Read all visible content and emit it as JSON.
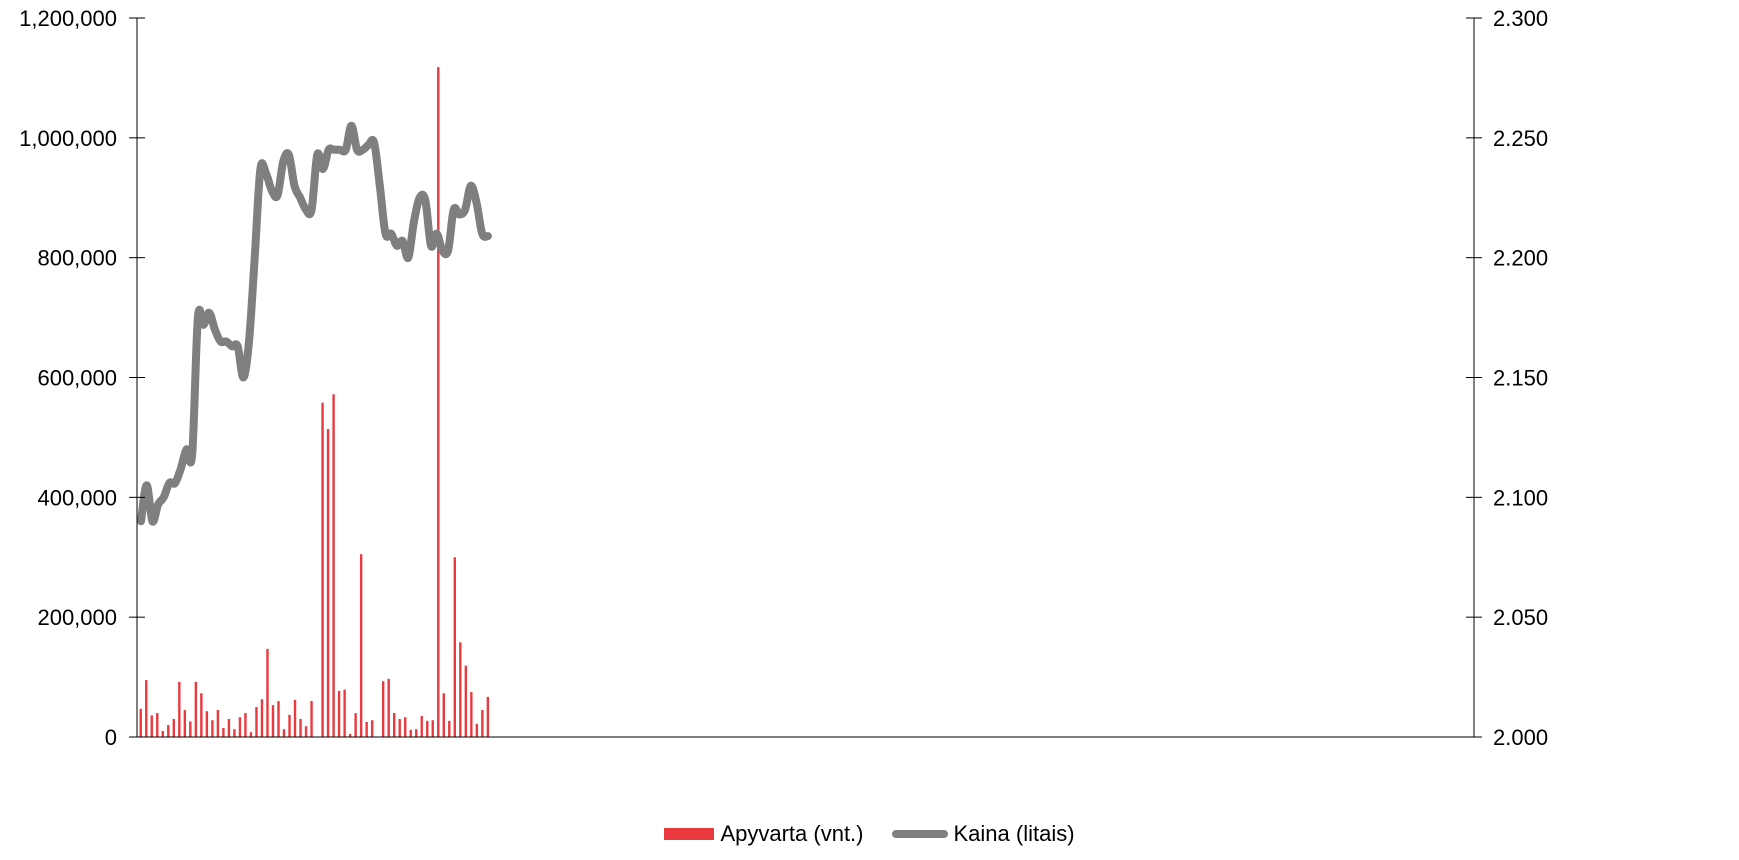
{
  "chart_data": {
    "type": "bar+line",
    "colors": {
      "bar": "#ea3a3f",
      "line": "#7f7f7f",
      "axis": "#000000"
    },
    "y_left": {
      "ylim": [
        0,
        1200000
      ],
      "ticks": [
        "1,200,000",
        "1,000,000",
        "800,000",
        "600,000",
        "400,000",
        "200,000",
        "0"
      ],
      "tick_values": [
        1200000,
        1000000,
        800000,
        600000,
        400000,
        200000,
        0
      ]
    },
    "y_right": {
      "ylim": [
        2.0,
        2.3
      ],
      "ticks": [
        "2.300",
        "2.250",
        "2.200",
        "2.150",
        "2.100",
        "2.050",
        "2.000"
      ],
      "tick_values": [
        2.3,
        2.25,
        2.2,
        2.15,
        2.1,
        2.05,
        2.0
      ]
    },
    "x_total_slots": 364,
    "grid": false,
    "legend_position": "bottom",
    "series": [
      {
        "name": "Apyvarta (vnt.)",
        "kind": "bar",
        "axis": "left",
        "values": [
          47000,
          95000,
          36000,
          40000,
          10000,
          20000,
          30000,
          92000,
          45000,
          26000,
          92000,
          73000,
          43000,
          28000,
          45000,
          15000,
          30000,
          13000,
          33000,
          40000,
          8000,
          50000,
          63000,
          147000,
          53000,
          60000,
          13000,
          37000,
          62000,
          30000,
          18000,
          60000,
          0,
          558000,
          514000,
          572000,
          77000,
          79000,
          5000,
          40000,
          305000,
          25000,
          28000,
          0,
          93000,
          97000,
          40000,
          30000,
          33000,
          12000,
          13000,
          35000,
          27000,
          28000,
          1118000,
          73000,
          27000,
          300000,
          158000,
          119000,
          75000,
          22000,
          45000,
          67000
        ]
      },
      {
        "name": "Kaina (litais)",
        "kind": "line",
        "axis": "right",
        "values": [
          2.09,
          2.105,
          2.09,
          2.097,
          2.1,
          2.106,
          2.106,
          2.112,
          2.12,
          2.118,
          2.175,
          2.172,
          2.177,
          2.17,
          2.165,
          2.165,
          2.163,
          2.163,
          2.15,
          2.165,
          2.2,
          2.237,
          2.235,
          2.228,
          2.226,
          2.24,
          2.243,
          2.23,
          2.225,
          2.22,
          2.22,
          2.243,
          2.237,
          2.245,
          2.245,
          2.245,
          2.245,
          2.255,
          2.245,
          2.245,
          2.247,
          2.248,
          2.23,
          2.21,
          2.21,
          2.205,
          2.207,
          2.2,
          2.215,
          2.225,
          2.224,
          2.205,
          2.21,
          2.203,
          2.203,
          2.22,
          2.218,
          2.22,
          2.23,
          2.223,
          2.21,
          2.209
        ]
      }
    ],
    "legend": [
      "Apyvarta (vnt.)",
      "Kaina (litais)"
    ]
  }
}
